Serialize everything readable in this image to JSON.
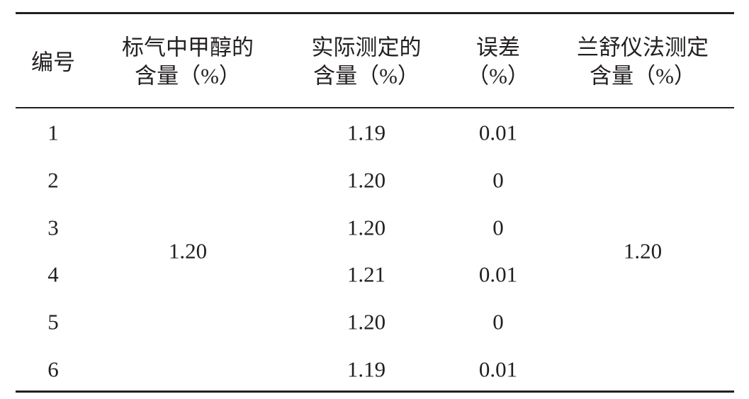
{
  "table": {
    "header": [
      [
        "编号"
      ],
      [
        "标气中甲醇的",
        "含量（%）"
      ],
      [
        "实际测定的",
        "含量（%）"
      ],
      [
        "误差",
        "（%）"
      ],
      [
        "兰舒仪法测定",
        "含量（%）"
      ]
    ],
    "rows": [
      [
        "1",
        "1.19",
        "0.01"
      ],
      [
        "2",
        "1.20",
        "0"
      ],
      [
        "3",
        "1.20",
        "0"
      ],
      [
        "4",
        "1.21",
        "0.01"
      ],
      [
        "5",
        "1.20",
        "0"
      ],
      [
        "6",
        "1.19",
        "0.01"
      ]
    ],
    "standard_content": "1.20",
    "lanshu_content": "1.20"
  }
}
